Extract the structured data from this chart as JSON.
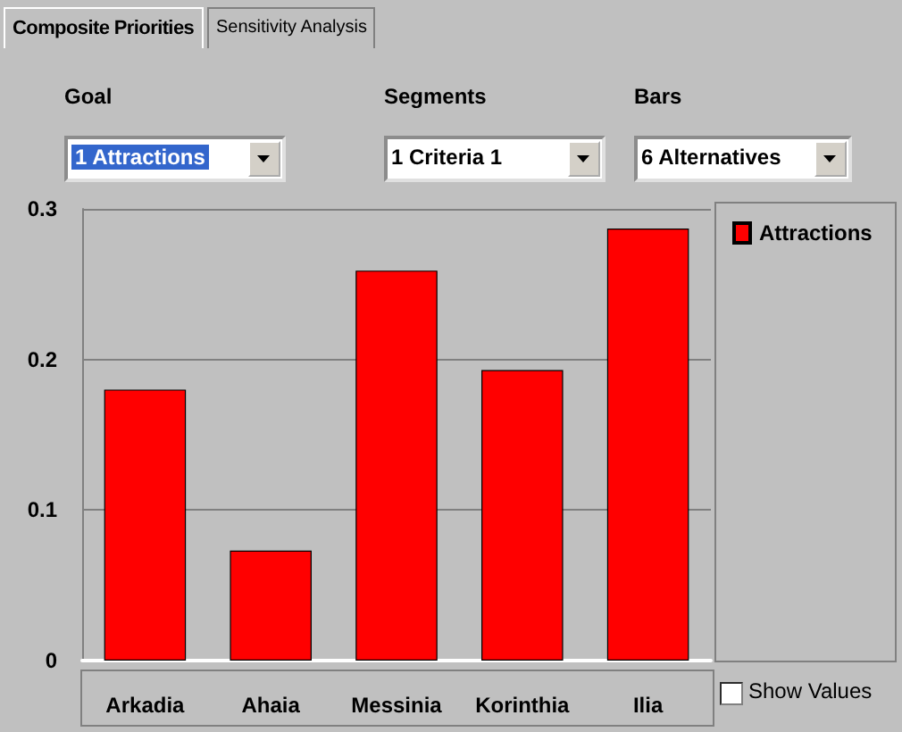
{
  "chart_data": {
    "type": "bar",
    "categories": [
      "Arkadia",
      "Ahaia",
      "Messinia",
      "Korinthia",
      "Ilia"
    ],
    "series": [
      {
        "name": "Attractions",
        "color": "#ff0000",
        "values": [
          0.18,
          0.073,
          0.259,
          0.193,
          0.287
        ]
      }
    ],
    "ylim": [
      0,
      0.3
    ],
    "yticks": [
      0,
      0.1,
      0.2,
      0.3
    ],
    "grid": "y",
    "legend": "top right",
    "annotations": [
      "Composite Priorities",
      "Sensitivity Analysis",
      "Goal",
      "Segments",
      "Bars",
      "1 Attractions",
      "1 Criteria 1",
      "6 Alternatives",
      "Show Values"
    ]
  }
}
